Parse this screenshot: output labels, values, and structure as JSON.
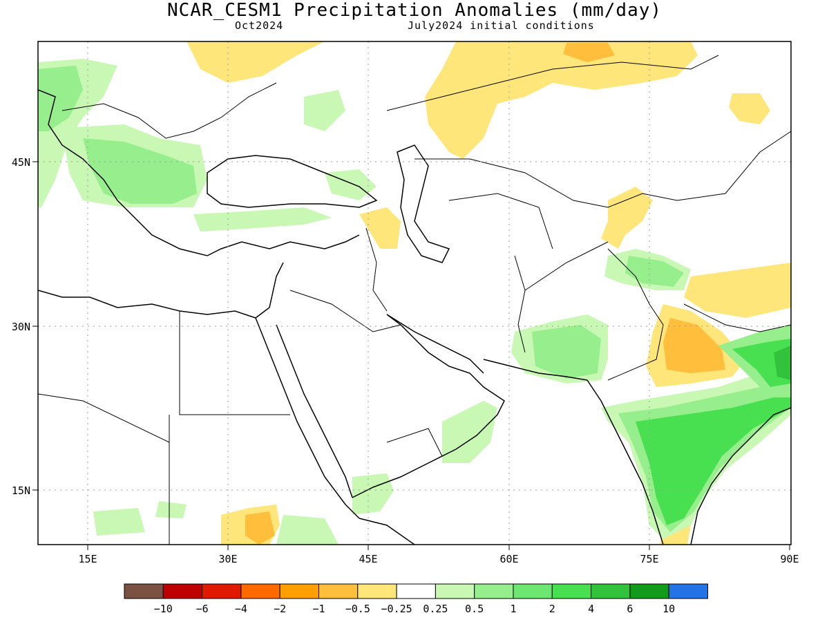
{
  "title": "NCAR_CESM1 Precipitation Anomalies (mm/day)",
  "subtitle_left": "Oct2024",
  "subtitle_right": "July2024 initial conditions",
  "longitude_labels": [
    "15E",
    "30E",
    "45E",
    "60E",
    "75E",
    "90E"
  ],
  "latitude_labels": [
    "45N",
    "30N",
    "15N"
  ],
  "colorbar": {
    "colors": [
      "#7b5142",
      "#be0000",
      "#e01a00",
      "#ff6a00",
      "#ffa000",
      "#ffbf3c",
      "#ffe67a",
      "#ffffff",
      "#c8f8b4",
      "#96ee8c",
      "#6ee672",
      "#48e050",
      "#32c23c",
      "#129a1a",
      "#2373e6"
    ],
    "labels": [
      "−10",
      "−6",
      "−4",
      "−2",
      "−1",
      "−0.5",
      "−0.25",
      "0.25",
      "0.5",
      "1",
      "2",
      "4",
      "6",
      "10"
    ]
  }
}
